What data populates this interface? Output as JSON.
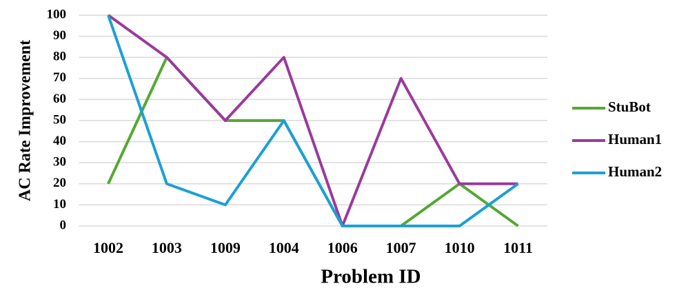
{
  "chart_data": {
    "type": "line",
    "x_label": "Problem ID",
    "y_label": "AC Rate Improvement",
    "categories": [
      "1002",
      "1003",
      "1009",
      "1004",
      "1006",
      "1007",
      "1010",
      "1011"
    ],
    "series": [
      {
        "name": "StuBot",
        "color": "#54a832",
        "values": [
          20,
          80,
          50,
          50,
          0,
          0,
          20,
          0
        ]
      },
      {
        "name": "Human1",
        "color": "#9a3a9c",
        "values": [
          100,
          80,
          50,
          80,
          0,
          70,
          20,
          20
        ]
      },
      {
        "name": "Human2",
        "color": "#1d9fd6",
        "values": [
          100,
          20,
          10,
          50,
          0,
          0,
          0,
          20
        ]
      }
    ],
    "ylim": [
      0,
      100
    ],
    "yticks": [
      0,
      10,
      20,
      30,
      40,
      50,
      60,
      70,
      80,
      90,
      100
    ],
    "grid": true,
    "legend": "right"
  }
}
